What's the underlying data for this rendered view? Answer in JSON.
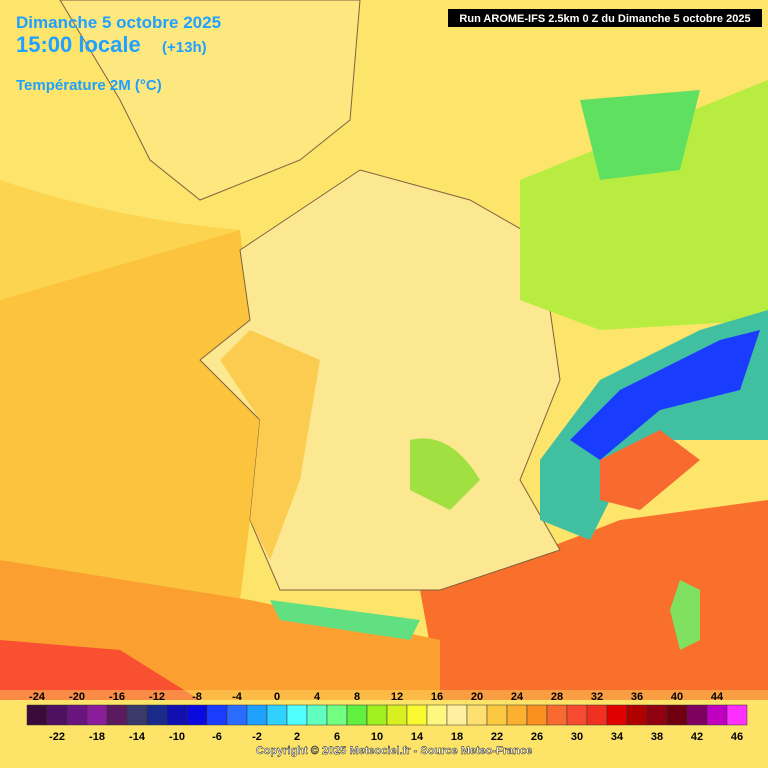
{
  "header": {
    "date": "Dimanche 5 octobre 2025",
    "time": "15:00 locale",
    "offset": "(+13h)",
    "parameter": "Température 2M (°C)",
    "run": "Run AROME-IFS 2.5km 0 Z du Dimanche 5 octobre 2025"
  },
  "legend": {
    "items": [
      {
        "value": -24,
        "color": "#3a0a3a"
      },
      {
        "value": -22,
        "color": "#4e1060"
      },
      {
        "value": -20,
        "color": "#6a1480"
      },
      {
        "value": -18,
        "color": "#8a1e9a"
      },
      {
        "value": -16,
        "color": "#5a1a60"
      },
      {
        "value": -14,
        "color": "#3a3a6a"
      },
      {
        "value": -12,
        "color": "#1a2a8a"
      },
      {
        "value": -10,
        "color": "#1010b0"
      },
      {
        "value": -8,
        "color": "#0a0ae0"
      },
      {
        "value": -6,
        "color": "#1a3cff"
      },
      {
        "value": -4,
        "color": "#2a6cff"
      },
      {
        "value": -2,
        "color": "#1ea0ff"
      },
      {
        "value": 0,
        "color": "#30d0ff"
      },
      {
        "value": 2,
        "color": "#50ffff"
      },
      {
        "value": 4,
        "color": "#60ffc0"
      },
      {
        "value": 6,
        "color": "#70ff80"
      },
      {
        "value": 8,
        "color": "#60f040"
      },
      {
        "value": 10,
        "color": "#a0f020"
      },
      {
        "value": 12,
        "color": "#d8f020"
      },
      {
        "value": 14,
        "color": "#fafa30"
      },
      {
        "value": 16,
        "color": "#fff880"
      },
      {
        "value": 18,
        "color": "#fff0a0"
      },
      {
        "value": 20,
        "color": "#fde070"
      },
      {
        "value": 22,
        "color": "#fcc840"
      },
      {
        "value": 24,
        "color": "#fbb030"
      },
      {
        "value": 26,
        "color": "#fa9020"
      },
      {
        "value": 28,
        "color": "#f86a30"
      },
      {
        "value": 30,
        "color": "#f84a30"
      },
      {
        "value": 32,
        "color": "#f03020"
      },
      {
        "value": 34,
        "color": "#e00000"
      },
      {
        "value": 36,
        "color": "#b00000"
      },
      {
        "value": 38,
        "color": "#900010"
      },
      {
        "value": 40,
        "color": "#700010"
      },
      {
        "value": 42,
        "color": "#800060"
      },
      {
        "value": 44,
        "color": "#c000c0"
      },
      {
        "value": 46,
        "color": "#ff30ff"
      }
    ]
  },
  "footer": {
    "copyright": "Copyright © 2025 Meteociel.fr - Source Meteo-France"
  }
}
